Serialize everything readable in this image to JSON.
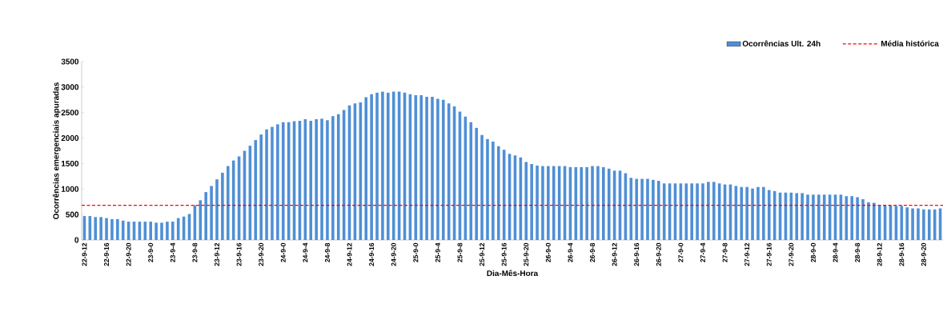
{
  "chart_data": {
    "type": "bar",
    "xlabel": "Dia-Mês-Hora",
    "ylabel": "Ocorrências emergenciais apuradas",
    "categories": [
      "22-9-12",
      null,
      null,
      null,
      "22-9-16",
      null,
      null,
      null,
      "22-9-20",
      null,
      null,
      null,
      "23-9-0",
      null,
      null,
      null,
      "23-9-4",
      null,
      null,
      null,
      "23-9-8",
      null,
      null,
      null,
      "23-9-12",
      null,
      null,
      null,
      "23-9-16",
      null,
      null,
      null,
      "23-9-20",
      null,
      null,
      null,
      "24-9-0",
      null,
      null,
      null,
      "24-9-4",
      null,
      null,
      null,
      "24-9-8",
      null,
      null,
      null,
      "24-9-12",
      null,
      null,
      null,
      "24-9-16",
      null,
      null,
      null,
      "24-9-20",
      null,
      null,
      null,
      "25-9-0",
      null,
      null,
      null,
      "25-9-4",
      null,
      null,
      null,
      "25-9-8",
      null,
      null,
      null,
      "25-9-12",
      null,
      null,
      null,
      "25-9-16",
      null,
      null,
      null,
      "25-9-20",
      null,
      null,
      null,
      "26-9-0",
      null,
      null,
      null,
      "26-9-4",
      null,
      null,
      null,
      "26-9-8",
      null,
      null,
      null,
      "26-9-12",
      null,
      null,
      null,
      "26-9-16",
      null,
      null,
      null,
      "26-9-20",
      null,
      null,
      null,
      "27-9-0",
      null,
      null,
      null,
      "27-9-4",
      null,
      null,
      null,
      "27-9-8",
      null,
      null,
      null,
      "27-9-12",
      null,
      null,
      null,
      "27-9-16",
      null,
      null,
      null,
      "27-9-20",
      null,
      null,
      null,
      "28-9-0",
      null,
      null,
      null,
      "28-9-4",
      null,
      null,
      null,
      "28-9-8",
      null,
      null,
      null,
      "28-9-12",
      null,
      null,
      null,
      "28-9-16",
      null,
      null,
      null,
      "28-9-20",
      null,
      null,
      null
    ],
    "series": [
      {
        "name": "Ocorrências Ult. 24h",
        "color": "#4f8fd6",
        "values": [
          470,
          470,
          450,
          450,
          430,
          410,
          410,
          380,
          360,
          360,
          360,
          360,
          360,
          340,
          340,
          360,
          360,
          430,
          460,
          510,
          680,
          780,
          940,
          1060,
          1190,
          1320,
          1450,
          1560,
          1640,
          1750,
          1850,
          1960,
          2070,
          2170,
          2220,
          2270,
          2310,
          2310,
          2330,
          2340,
          2370,
          2340,
          2370,
          2380,
          2350,
          2430,
          2470,
          2550,
          2640,
          2680,
          2700,
          2800,
          2860,
          2890,
          2910,
          2890,
          2910,
          2910,
          2890,
          2860,
          2840,
          2840,
          2810,
          2810,
          2770,
          2750,
          2680,
          2620,
          2520,
          2420,
          2310,
          2200,
          2060,
          1980,
          1930,
          1840,
          1770,
          1690,
          1660,
          1620,
          1530,
          1490,
          1460,
          1450,
          1450,
          1450,
          1450,
          1450,
          1430,
          1430,
          1430,
          1430,
          1450,
          1450,
          1430,
          1400,
          1360,
          1360,
          1310,
          1220,
          1200,
          1200,
          1200,
          1180,
          1160,
          1110,
          1110,
          1110,
          1110,
          1110,
          1110,
          1110,
          1110,
          1140,
          1140,
          1110,
          1090,
          1090,
          1060,
          1040,
          1040,
          1010,
          1040,
          1040,
          980,
          960,
          930,
          930,
          930,
          920,
          920,
          890,
          890,
          890,
          890,
          890,
          890,
          890,
          860,
          860,
          840,
          800,
          740,
          730,
          680,
          680,
          680,
          670,
          670,
          640,
          620,
          620,
          600,
          600,
          600,
          620
        ]
      }
    ],
    "ref_lines": [
      {
        "axis": "y",
        "value": 680,
        "label": "Média histórica",
        "color": "#ff0000",
        "line_style": "dashed"
      }
    ],
    "ylim": [
      0,
      3500
    ],
    "yticks": [
      0,
      500,
      1000,
      1500,
      2000,
      2500,
      3000,
      3500
    ],
    "legend": "top right"
  }
}
